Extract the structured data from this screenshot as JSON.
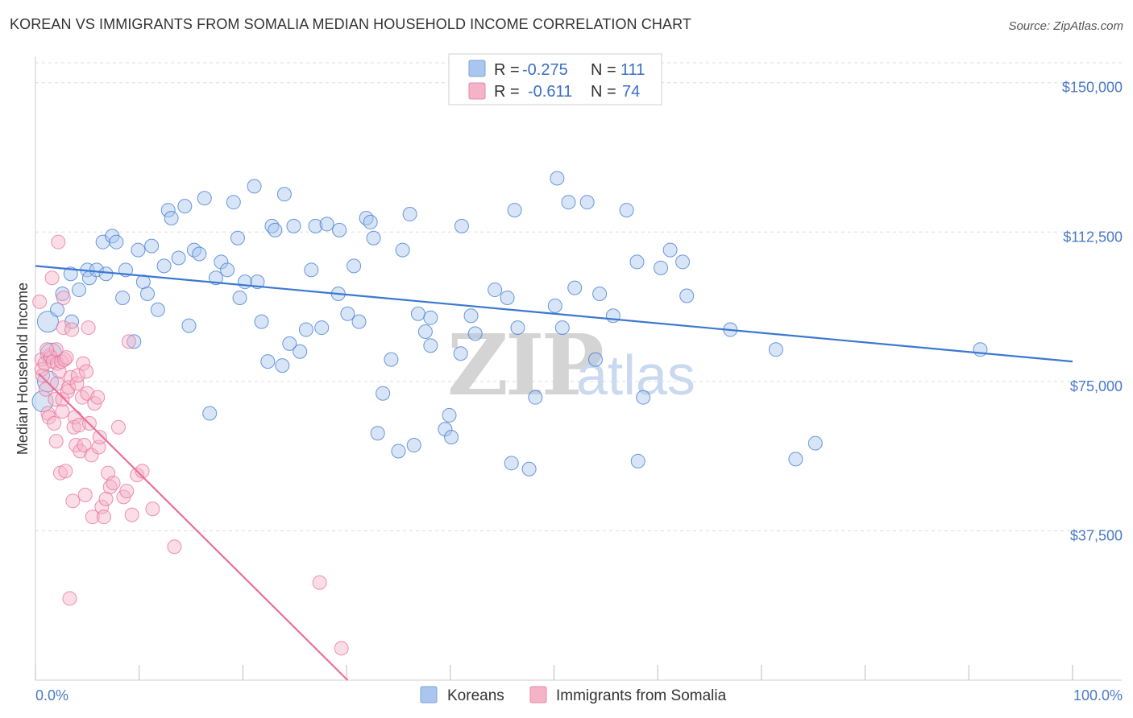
{
  "title": "KOREAN VS IMMIGRANTS FROM SOMALIA MEDIAN HOUSEHOLD INCOME CORRELATION CHART",
  "source": "Source: ZipAtlas.com",
  "watermark": {
    "zip": "ZIP",
    "atlas": "atlas"
  },
  "colors": {
    "blue": "#3b78d0",
    "blue_fill": "#a9c6ee",
    "pink": "#e8709a",
    "pink_fill": "#f5b3c8",
    "grid": "#dddddd",
    "tick_label": "#4a7ac7"
  },
  "legend": {
    "rows": [
      {
        "r_label": "R =",
        "r_value": "-0.275",
        "n_label": "N =",
        "n_value": "111"
      },
      {
        "r_label": "R =",
        "r_value": "-0.611",
        "n_label": "N =",
        "n_value": "74"
      }
    ]
  },
  "chart_data": {
    "type": "scatter",
    "title": "KOREAN VS IMMIGRANTS FROM SOMALIA MEDIAN HOUSEHOLD INCOME CORRELATION CHART",
    "xlabel": "",
    "ylabel": "Median Household Income",
    "xlim": [
      0,
      100
    ],
    "ylim": [
      0,
      155000
    ],
    "x_tick_labels": [
      "0.0%",
      "100.0%"
    ],
    "y_ticks": [
      37500,
      75000,
      112500,
      150000
    ],
    "y_tick_labels": [
      "$37,500",
      "$75,000",
      "$112,500",
      "$150,000"
    ],
    "grid": true,
    "legend_position": "top-center",
    "series": [
      {
        "name": "Koreans",
        "r": -0.275,
        "n": 111,
        "trend": {
          "x": [
            0,
            100
          ],
          "y": [
            104000,
            80000
          ]
        },
        "points": [
          [
            1.2,
            90000
          ],
          [
            1.5,
            82000
          ],
          [
            1.2,
            75000
          ],
          [
            0.7,
            70000
          ],
          [
            2.1,
            93000
          ],
          [
            2.6,
            97000
          ],
          [
            3.4,
            102000
          ],
          [
            3.5,
            90000
          ],
          [
            4.2,
            98000
          ],
          [
            5.0,
            103000
          ],
          [
            5.2,
            101000
          ],
          [
            5.9,
            103000
          ],
          [
            6.5,
            110000
          ],
          [
            6.8,
            102000
          ],
          [
            7.4,
            111500
          ],
          [
            7.8,
            110000
          ],
          [
            8.4,
            96000
          ],
          [
            8.7,
            103000
          ],
          [
            9.5,
            85000
          ],
          [
            9.9,
            108000
          ],
          [
            10.4,
            100000
          ],
          [
            10.8,
            97000
          ],
          [
            11.2,
            109000
          ],
          [
            11.8,
            93000
          ],
          [
            12.4,
            104000
          ],
          [
            12.8,
            118000
          ],
          [
            13.1,
            116000
          ],
          [
            13.8,
            106000
          ],
          [
            14.4,
            119000
          ],
          [
            14.8,
            89000
          ],
          [
            15.3,
            108000
          ],
          [
            15.8,
            107000
          ],
          [
            16.3,
            121000
          ],
          [
            16.8,
            67000
          ],
          [
            17.4,
            101000
          ],
          [
            17.9,
            105000
          ],
          [
            18.5,
            103000
          ],
          [
            19.1,
            120000
          ],
          [
            19.5,
            111000
          ],
          [
            19.7,
            96000
          ],
          [
            20.2,
            100000
          ],
          [
            21.1,
            124000
          ],
          [
            21.4,
            100000
          ],
          [
            21.8,
            90000
          ],
          [
            22.4,
            80000
          ],
          [
            22.8,
            114000
          ],
          [
            23.1,
            113000
          ],
          [
            23.8,
            79000
          ],
          [
            24.0,
            122000
          ],
          [
            24.5,
            84500
          ],
          [
            24.9,
            114000
          ],
          [
            25.5,
            82500
          ],
          [
            26.1,
            88000
          ],
          [
            26.6,
            103000
          ],
          [
            27.0,
            114000
          ],
          [
            27.6,
            88500
          ],
          [
            28.1,
            114500
          ],
          [
            29.3,
            113000
          ],
          [
            29.2,
            97000
          ],
          [
            30.1,
            92000
          ],
          [
            30.7,
            104000
          ],
          [
            31.2,
            90000
          ],
          [
            31.9,
            116000
          ],
          [
            32.3,
            115000
          ],
          [
            32.6,
            111000
          ],
          [
            33.0,
            62000
          ],
          [
            33.5,
            72000
          ],
          [
            34.3,
            80500
          ],
          [
            35.0,
            57500
          ],
          [
            35.4,
            108000
          ],
          [
            36.1,
            117000
          ],
          [
            36.9,
            92000
          ],
          [
            36.5,
            59000
          ],
          [
            37.6,
            87500
          ],
          [
            38.1,
            91000
          ],
          [
            38.1,
            84000
          ],
          [
            39.5,
            63000
          ],
          [
            39.9,
            66500
          ],
          [
            40.1,
            61000
          ],
          [
            41.0,
            82000
          ],
          [
            41.1,
            114000
          ],
          [
            42.0,
            91500
          ],
          [
            42.4,
            87000
          ],
          [
            44.3,
            98000
          ],
          [
            45.5,
            96000
          ],
          [
            45.9,
            54500
          ],
          [
            46.2,
            118000
          ],
          [
            46.5,
            88500
          ],
          [
            47.6,
            53000
          ],
          [
            48.2,
            71000
          ],
          [
            50.3,
            126000
          ],
          [
            50.1,
            94000
          ],
          [
            50.8,
            88500
          ],
          [
            51.4,
            120000
          ],
          [
            52.0,
            98500
          ],
          [
            53.2,
            120000
          ],
          [
            54.0,
            80500
          ],
          [
            54.4,
            97000
          ],
          [
            55.7,
            91500
          ],
          [
            57.0,
            118000
          ],
          [
            58.0,
            105000
          ],
          [
            58.1,
            55000
          ],
          [
            58.6,
            71000
          ],
          [
            60.3,
            103500
          ],
          [
            61.2,
            108000
          ],
          [
            62.4,
            105000
          ],
          [
            62.8,
            96500
          ],
          [
            67.0,
            88000
          ],
          [
            71.4,
            83000
          ],
          [
            73.3,
            55500
          ],
          [
            75.2,
            59500
          ],
          [
            91.1,
            83000
          ]
        ]
      },
      {
        "name": "Immigrants from Somalia",
        "r": -0.611,
        "n": 74,
        "trend": {
          "x": [
            0.3,
            30.1
          ],
          "y": [
            77000,
            0
          ]
        },
        "points": [
          [
            0.4,
            95000
          ],
          [
            0.6,
            80500
          ],
          [
            0.6,
            78000
          ],
          [
            0.7,
            76500
          ],
          [
            0.9,
            79500
          ],
          [
            1.0,
            73000
          ],
          [
            1.2,
            67000
          ],
          [
            1.3,
            66000
          ],
          [
            1.4,
            81500
          ],
          [
            1.5,
            81000
          ],
          [
            1.6,
            101000
          ],
          [
            1.7,
            80000
          ],
          [
            1.8,
            64500
          ],
          [
            1.9,
            70500
          ],
          [
            2.0,
            83000
          ],
          [
            2.0,
            60000
          ],
          [
            2.1,
            79500
          ],
          [
            2.1,
            74500
          ],
          [
            2.2,
            110000
          ],
          [
            2.3,
            77500
          ],
          [
            2.4,
            52000
          ],
          [
            2.5,
            80000
          ],
          [
            2.6,
            67500
          ],
          [
            2.6,
            70500
          ],
          [
            2.7,
            96000
          ],
          [
            2.7,
            88500
          ],
          [
            2.8,
            80500
          ],
          [
            3.0,
            81000
          ],
          [
            3.1,
            72500
          ],
          [
            3.2,
            73500
          ],
          [
            3.3,
            20500
          ],
          [
            3.4,
            76000
          ],
          [
            3.5,
            88000
          ],
          [
            3.6,
            45000
          ],
          [
            3.7,
            63500
          ],
          [
            3.8,
            66000
          ],
          [
            3.9,
            59000
          ],
          [
            4.0,
            74500
          ],
          [
            4.1,
            76500
          ],
          [
            4.2,
            64000
          ],
          [
            4.3,
            57500
          ],
          [
            4.5,
            71000
          ],
          [
            4.6,
            79500
          ],
          [
            4.7,
            59000
          ],
          [
            4.8,
            46500
          ],
          [
            4.9,
            77500
          ],
          [
            5.0,
            72000
          ],
          [
            5.1,
            88500
          ],
          [
            5.2,
            64500
          ],
          [
            5.4,
            56500
          ],
          [
            5.5,
            41000
          ],
          [
            5.7,
            69500
          ],
          [
            6.0,
            71000
          ],
          [
            6.1,
            58500
          ],
          [
            6.2,
            61000
          ],
          [
            6.4,
            43500
          ],
          [
            6.6,
            41000
          ],
          [
            6.8,
            45500
          ],
          [
            7.0,
            52000
          ],
          [
            7.2,
            48500
          ],
          [
            7.5,
            49500
          ],
          [
            8.0,
            63500
          ],
          [
            8.5,
            46000
          ],
          [
            8.8,
            47500
          ],
          [
            9.0,
            85000
          ],
          [
            9.3,
            41500
          ],
          [
            9.8,
            51500
          ],
          [
            10.3,
            52500
          ],
          [
            11.3,
            43000
          ],
          [
            13.4,
            33500
          ],
          [
            27.4,
            24500
          ],
          [
            29.5,
            8000
          ],
          [
            1.1,
            83000
          ],
          [
            2.9,
            52500
          ]
        ]
      }
    ]
  }
}
